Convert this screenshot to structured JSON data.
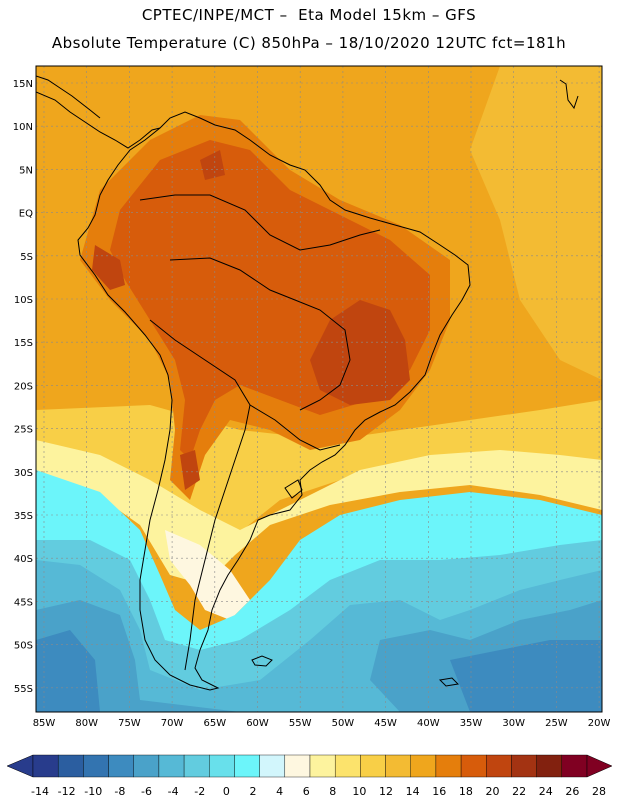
{
  "header": {
    "line1": "CPTEC/INPE/MCT –  Eta Model 15km – GFS",
    "line2": "Absolute Temperature (C) 850hPa – 18/10/2020 12UTC fct=181h"
  },
  "map": {
    "lat_labels": [
      "15N",
      "10N",
      "5N",
      "EQ",
      "5S",
      "10S",
      "15S",
      "20S",
      "25S",
      "30S",
      "35S",
      "40S",
      "45S",
      "50S",
      "55S"
    ],
    "lon_labels": [
      "85W",
      "80W",
      "75W",
      "70W",
      "65W",
      "60W",
      "55W",
      "50W",
      "45W",
      "40W",
      "35W",
      "30W",
      "25W",
      "20W"
    ],
    "colors": {
      "frame": "#000000",
      "grid": "#8a8a8a",
      "coast": "#000000"
    }
  },
  "colorbar": {
    "labels": [
      "-14",
      "-12",
      "-10",
      "-8",
      "-6",
      "-4",
      "-2",
      "0",
      "2",
      "4",
      "6",
      "8",
      "10",
      "12",
      "14",
      "16",
      "18",
      "20",
      "22",
      "24",
      "26",
      "28"
    ],
    "colors": [
      "#283c8c",
      "#2b5ea0",
      "#3374b0",
      "#3d8bbf",
      "#4aa2c9",
      "#56b9d6",
      "#62ccdf",
      "#68e0eb",
      "#6cf5fa",
      "#d2f6fc",
      "#fef7e0",
      "#fdf39e",
      "#fce36c",
      "#f8cf47",
      "#f3bb33",
      "#efa61d",
      "#e57e0c",
      "#d75c0b",
      "#c0450f",
      "#a33312",
      "#82210f",
      "#800022"
    ],
    "left_arrow_color": "#283c8c",
    "right_arrow_color": "#800022"
  },
  "field_colors": {
    "hot3": "#c0450f",
    "hot2": "#d75c0b",
    "hot1": "#e57e0c",
    "warm": "#efa61d",
    "warm2": "#f3bb33",
    "yel": "#f8cf47",
    "lyel": "#fdf39e",
    "cream": "#fef7e0",
    "pale": "#d2f6fc",
    "cyan": "#6cf5fa",
    "cyan2": "#62ccdf",
    "blue1": "#56b9d6",
    "blue2": "#4aa2c9",
    "blue3": "#3d8bbf",
    "blue4": "#3374b0"
  }
}
